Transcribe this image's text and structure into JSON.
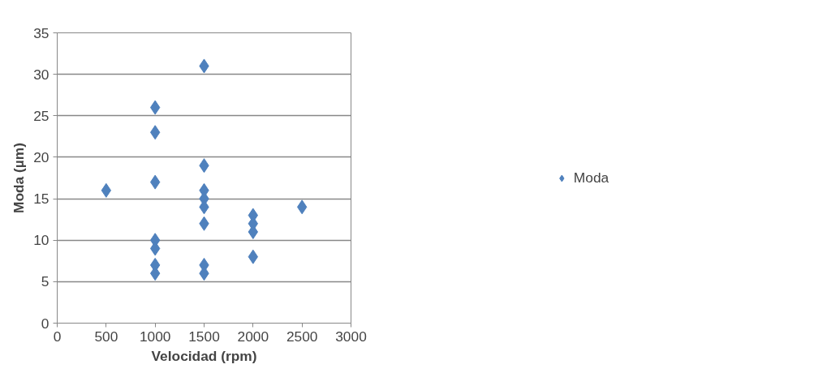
{
  "chart_data": {
    "type": "scatter",
    "xlabel": "Velocidad (rpm)",
    "ylabel": "Moda (µm)",
    "series": [
      {
        "name": "Moda",
        "color": "#4f81bd",
        "x": [
          500,
          1000,
          1000,
          1000,
          1000,
          1000,
          1000,
          1000,
          1500,
          1500,
          1500,
          1500,
          1500,
          1500,
          1500,
          1500,
          2000,
          2000,
          2000,
          2000,
          2500
        ],
        "values": [
          16,
          26,
          23,
          17,
          10,
          9,
          7,
          6,
          31,
          19,
          16,
          15,
          14,
          12,
          7,
          6,
          13,
          12,
          11,
          8,
          14
        ]
      }
    ],
    "xlim": [
      0,
      3000
    ],
    "xticks": [
      0,
      500,
      1000,
      1500,
      2000,
      2500,
      3000
    ],
    "ylim": [
      0,
      35
    ],
    "yticks": [
      0,
      5,
      10,
      15,
      20,
      25,
      30,
      35
    ],
    "grid": "y",
    "legend": "right",
    "marker": "diamond"
  }
}
